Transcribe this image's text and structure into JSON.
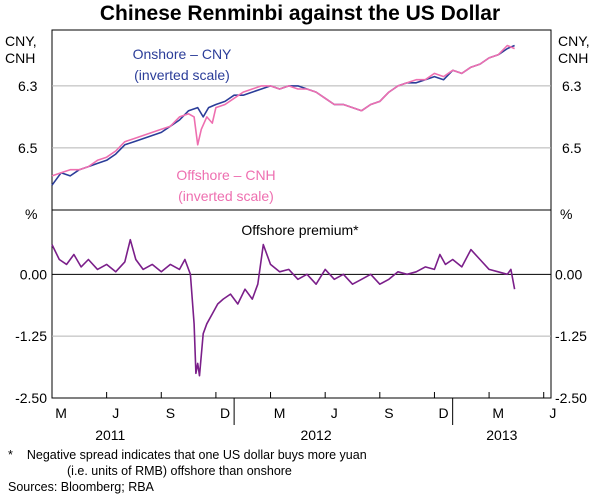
{
  "chart_data": {
    "type": "line",
    "title": "Chinese Renminbi against the US Dollar",
    "x_axis": {
      "month_ticks": [
        "M",
        "J",
        "S",
        "D",
        "M",
        "J",
        "S",
        "D",
        "M",
        "J"
      ],
      "year_labels": [
        "2011",
        "2012",
        "2013"
      ],
      "range_months": [
        0,
        27.4
      ]
    },
    "panels": [
      {
        "name": "exchange-rate",
        "y_unit_left": "CNY, CNH",
        "y_unit_right": "CNY, CNH",
        "scale": "inverted",
        "ylim": [
          6.7,
          6.12
        ],
        "yticks": [
          "6.3",
          "6.5"
        ],
        "series": [
          {
            "name": "Onshore – CNY",
            "label_line1": "Onshore – CNY",
            "label_line2": "(inverted scale)",
            "color": "#2b3d99",
            "points": [
              [
                0.0,
                6.62
              ],
              [
                0.5,
                6.58
              ],
              [
                1,
                6.59
              ],
              [
                1.5,
                6.57
              ],
              [
                2,
                6.56
              ],
              [
                2.5,
                6.55
              ],
              [
                3,
                6.54
              ],
              [
                3.5,
                6.52
              ],
              [
                4,
                6.49
              ],
              [
                4.5,
                6.48
              ],
              [
                5,
                6.47
              ],
              [
                5.5,
                6.46
              ],
              [
                6,
                6.45
              ],
              [
                6.5,
                6.43
              ],
              [
                7,
                6.41
              ],
              [
                7.5,
                6.38
              ],
              [
                8,
                6.37
              ],
              [
                8.3,
                6.4
              ],
              [
                8.6,
                6.37
              ],
              [
                9,
                6.36
              ],
              [
                9.5,
                6.35
              ],
              [
                10,
                6.33
              ],
              [
                10.5,
                6.33
              ],
              [
                11,
                6.32
              ],
              [
                11.5,
                6.31
              ],
              [
                12,
                6.3
              ],
              [
                12.5,
                6.31
              ],
              [
                13,
                6.3
              ],
              [
                13.5,
                6.3
              ],
              [
                14,
                6.31
              ],
              [
                14.5,
                6.32
              ],
              [
                15,
                6.34
              ],
              [
                15.5,
                6.36
              ],
              [
                16,
                6.36
              ],
              [
                16.5,
                6.37
              ],
              [
                17,
                6.38
              ],
              [
                17.5,
                6.36
              ],
              [
                18,
                6.35
              ],
              [
                18.5,
                6.32
              ],
              [
                19,
                6.3
              ],
              [
                19.5,
                6.29
              ],
              [
                20,
                6.29
              ],
              [
                20.5,
                6.28
              ],
              [
                21,
                6.27
              ],
              [
                21.5,
                6.28
              ],
              [
                22,
                6.25
              ],
              [
                22.5,
                6.26
              ],
              [
                23,
                6.24
              ],
              [
                23.5,
                6.23
              ],
              [
                24,
                6.21
              ],
              [
                24.5,
                6.2
              ],
              [
                25,
                6.18
              ],
              [
                25.4,
                6.17
              ]
            ]
          },
          {
            "name": "Offshore – CNH",
            "label_line1": "Offshore – CNH",
            "label_line2": "(inverted scale)",
            "color": "#ee6fb0",
            "points": [
              [
                0.0,
                6.59
              ],
              [
                0.5,
                6.58
              ],
              [
                1,
                6.57
              ],
              [
                1.5,
                6.57
              ],
              [
                2,
                6.56
              ],
              [
                2.5,
                6.54
              ],
              [
                3,
                6.53
              ],
              [
                3.5,
                6.51
              ],
              [
                4,
                6.48
              ],
              [
                4.5,
                6.47
              ],
              [
                5,
                6.46
              ],
              [
                5.5,
                6.45
              ],
              [
                6,
                6.44
              ],
              [
                6.5,
                6.43
              ],
              [
                7,
                6.4
              ],
              [
                7.5,
                6.39
              ],
              [
                7.8,
                6.4
              ],
              [
                8.0,
                6.49
              ],
              [
                8.2,
                6.44
              ],
              [
                8.5,
                6.4
              ],
              [
                8.8,
                6.42
              ],
              [
                9,
                6.37
              ],
              [
                9.5,
                6.36
              ],
              [
                10,
                6.34
              ],
              [
                10.5,
                6.32
              ],
              [
                11,
                6.31
              ],
              [
                11.5,
                6.3
              ],
              [
                12,
                6.3
              ],
              [
                12.5,
                6.31
              ],
              [
                13,
                6.3
              ],
              [
                13.5,
                6.31
              ],
              [
                14,
                6.31
              ],
              [
                14.5,
                6.32
              ],
              [
                15,
                6.34
              ],
              [
                15.5,
                6.36
              ],
              [
                16,
                6.36
              ],
              [
                16.5,
                6.37
              ],
              [
                17,
                6.38
              ],
              [
                17.5,
                6.36
              ],
              [
                18,
                6.35
              ],
              [
                18.5,
                6.32
              ],
              [
                19,
                6.3
              ],
              [
                19.5,
                6.29
              ],
              [
                20,
                6.28
              ],
              [
                20.5,
                6.28
              ],
              [
                21,
                6.26
              ],
              [
                21.5,
                6.27
              ],
              [
                22,
                6.25
              ],
              [
                22.5,
                6.26
              ],
              [
                23,
                6.24
              ],
              [
                23.5,
                6.23
              ],
              [
                24,
                6.21
              ],
              [
                24.5,
                6.2
              ],
              [
                25,
                6.17
              ],
              [
                25.4,
                6.18
              ]
            ]
          }
        ]
      },
      {
        "name": "offshore-premium",
        "title": "Offshore premium*",
        "y_unit_left": "%",
        "y_unit_right": "%",
        "ylim": [
          -2.5,
          1.3
        ],
        "yticks": [
          "0.00",
          "-1.25",
          "-2.50"
        ],
        "series": [
          {
            "name": "Offshore premium",
            "color": "#7b1f8a",
            "points": [
              [
                0.0,
                0.6
              ],
              [
                0.4,
                0.3
              ],
              [
                0.8,
                0.2
              ],
              [
                1.2,
                0.4
              ],
              [
                1.6,
                0.15
              ],
              [
                2,
                0.3
              ],
              [
                2.5,
                0.1
              ],
              [
                3,
                0.2
              ],
              [
                3.5,
                0.05
              ],
              [
                4,
                0.25
              ],
              [
                4.3,
                0.7
              ],
              [
                4.6,
                0.3
              ],
              [
                5,
                0.1
              ],
              [
                5.5,
                0.2
              ],
              [
                6,
                0.05
              ],
              [
                6.5,
                0.2
              ],
              [
                7,
                0.1
              ],
              [
                7.3,
                0.3
              ],
              [
                7.6,
                0.0
              ],
              [
                7.8,
                -1.0
              ],
              [
                7.9,
                -2.0
              ],
              [
                8.0,
                -1.8
              ],
              [
                8.1,
                -2.05
              ],
              [
                8.3,
                -1.2
              ],
              [
                8.5,
                -1.0
              ],
              [
                8.8,
                -0.8
              ],
              [
                9.1,
                -0.6
              ],
              [
                9.4,
                -0.5
              ],
              [
                9.8,
                -0.4
              ],
              [
                10.2,
                -0.6
              ],
              [
                10.6,
                -0.3
              ],
              [
                11,
                -0.5
              ],
              [
                11.3,
                -0.2
              ],
              [
                11.6,
                0.6
              ],
              [
                12,
                0.2
              ],
              [
                12.5,
                0.05
              ],
              [
                13,
                0.1
              ],
              [
                13.5,
                -0.1
              ],
              [
                14,
                0.0
              ],
              [
                14.5,
                -0.2
              ],
              [
                15,
                0.1
              ],
              [
                15.5,
                -0.1
              ],
              [
                16,
                0.0
              ],
              [
                16.5,
                -0.2
              ],
              [
                17,
                -0.1
              ],
              [
                17.5,
                0.0
              ],
              [
                18,
                -0.2
              ],
              [
                18.5,
                -0.1
              ],
              [
                19,
                0.05
              ],
              [
                19.5,
                0.0
              ],
              [
                20,
                0.05
              ],
              [
                20.5,
                0.15
              ],
              [
                21,
                0.1
              ],
              [
                21.3,
                0.4
              ],
              [
                21.6,
                0.2
              ],
              [
                22,
                0.3
              ],
              [
                22.5,
                0.15
              ],
              [
                23,
                0.5
              ],
              [
                23.5,
                0.3
              ],
              [
                24,
                0.1
              ],
              [
                24.5,
                0.05
              ],
              [
                25,
                0.0
              ],
              [
                25.2,
                0.1
              ],
              [
                25.4,
                -0.3
              ]
            ]
          }
        ]
      }
    ]
  },
  "footnotes": {
    "asterisk": "*",
    "line1": "Negative spread indicates that one US dollar buys more yuan",
    "line2": "(i.e. units of RMB) offshore than onshore",
    "sources": "Sources: Bloomberg; RBA"
  }
}
